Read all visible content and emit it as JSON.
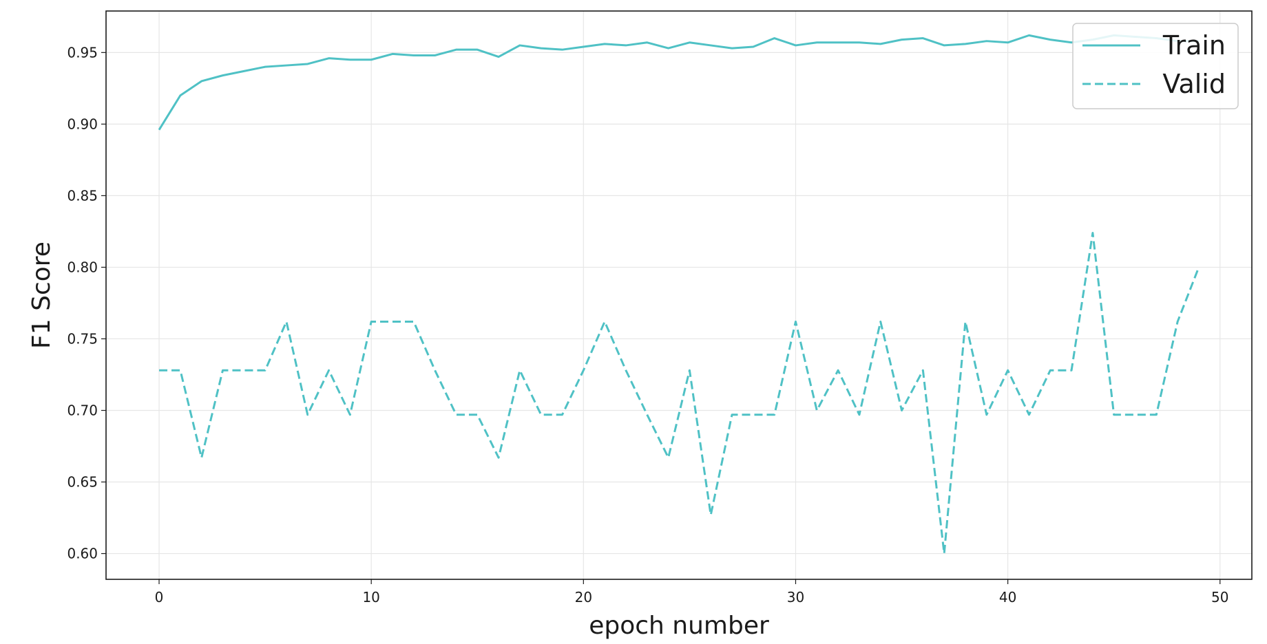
{
  "chart_data": {
    "type": "line",
    "title": "",
    "xlabel": "epoch number",
    "ylabel": "F1 Score",
    "xlim": [
      -2.5,
      51.5
    ],
    "ylim": [
      0.582,
      0.979
    ],
    "xticks": [
      0,
      10,
      20,
      30,
      40,
      50
    ],
    "yticks": [
      0.6,
      0.65,
      0.7,
      0.75,
      0.8,
      0.85,
      0.9,
      0.95
    ],
    "grid": true,
    "legend_position": "top-right",
    "color": "#4fc1c5",
    "x": [
      0,
      1,
      2,
      3,
      4,
      5,
      6,
      7,
      8,
      9,
      10,
      11,
      12,
      13,
      14,
      15,
      16,
      17,
      18,
      19,
      20,
      21,
      22,
      23,
      24,
      25,
      26,
      27,
      28,
      29,
      30,
      31,
      32,
      33,
      34,
      35,
      36,
      37,
      38,
      39,
      40,
      41,
      42,
      43,
      44,
      45,
      46,
      47,
      48,
      49
    ],
    "series": [
      {
        "name": "Train",
        "style": "solid",
        "values": [
          0.896,
          0.92,
          0.93,
          0.934,
          0.937,
          0.94,
          0.941,
          0.942,
          0.946,
          0.945,
          0.945,
          0.949,
          0.948,
          0.948,
          0.952,
          0.952,
          0.947,
          0.955,
          0.953,
          0.952,
          0.954,
          0.956,
          0.955,
          0.957,
          0.953,
          0.957,
          0.955,
          0.953,
          0.954,
          0.96,
          0.955,
          0.957,
          0.957,
          0.957,
          0.956,
          0.959,
          0.96,
          0.955,
          0.956,
          0.958,
          0.957,
          0.962,
          0.959,
          0.957,
          0.959,
          0.962,
          0.961,
          0.96,
          0.958,
          0.958
        ]
      },
      {
        "name": "Valid",
        "style": "dashed",
        "values": [
          0.728,
          0.728,
          0.667,
          0.728,
          0.728,
          0.728,
          0.762,
          0.697,
          0.728,
          0.697,
          0.762,
          0.762,
          0.762,
          0.728,
          0.697,
          0.697,
          0.667,
          0.728,
          0.697,
          0.697,
          0.728,
          0.762,
          0.728,
          0.697,
          0.667,
          0.728,
          0.627,
          0.697,
          0.697,
          0.697,
          0.762,
          0.7,
          0.728,
          0.697,
          0.762,
          0.7,
          0.728,
          0.6,
          0.762,
          0.697,
          0.728,
          0.697,
          0.728,
          0.728,
          0.824,
          0.697,
          0.697,
          0.697,
          0.762,
          0.8
        ]
      }
    ]
  }
}
